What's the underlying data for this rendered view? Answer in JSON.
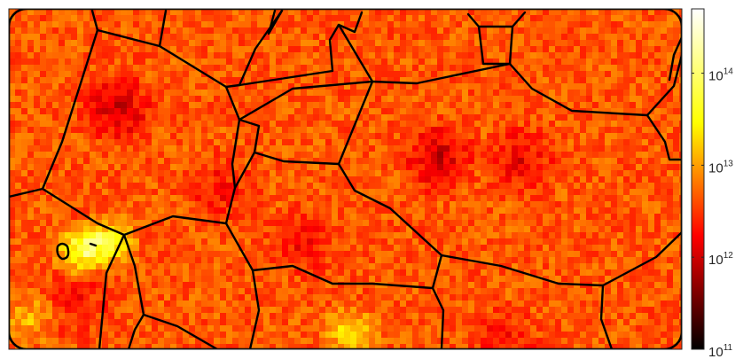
{
  "chart_data": {
    "type": "heatmap",
    "title": "",
    "xlabel": "",
    "ylabel": "",
    "grid": false,
    "colormap": "hot",
    "colormap_stops": [
      "#000000",
      "#ff0000",
      "#ffff00",
      "#ffffff"
    ],
    "colorbar": {
      "scale": "log",
      "range": [
        100000000000.0,
        500000000000000.0
      ],
      "ticks": [
        {
          "value": 100000000000.0,
          "base": "10",
          "exp": "11"
        },
        {
          "value": 1000000000000.0,
          "base": "10",
          "exp": "12"
        },
        {
          "value": 10000000000000.0,
          "base": "10",
          "exp": "13"
        },
        {
          "value": 100000000000000.0,
          "base": "10",
          "exp": "14"
        }
      ]
    },
    "boundary_color": "#000000",
    "background_color": "#ffffff"
  }
}
